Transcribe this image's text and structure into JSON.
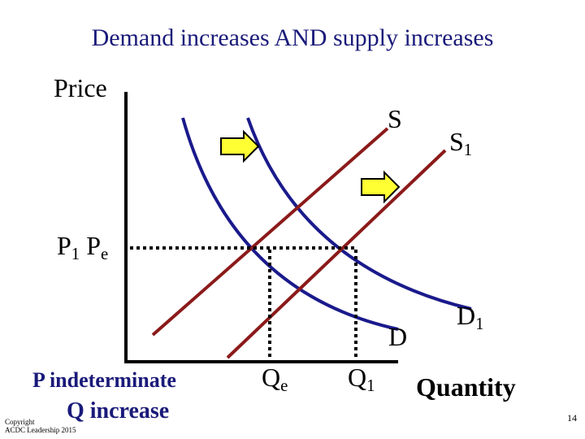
{
  "title": "Demand increases AND supply increases",
  "axes": {
    "y_label": "Price",
    "x_label": "Quantity"
  },
  "curves": {
    "supply_label": "S",
    "supply_shift": {
      "letter": "S",
      "sub": "1"
    },
    "demand_label": "D",
    "demand_shift": {
      "letter": "D",
      "sub": "1"
    }
  },
  "price_labels": {
    "p1": {
      "letter": "P",
      "sub": "1"
    },
    "pe": {
      "letter": "P",
      "sub": "e"
    }
  },
  "quantity_labels": {
    "qe": {
      "letter": "Q",
      "sub": "e"
    },
    "q1": {
      "letter": "Q",
      "sub": "1"
    }
  },
  "conclusion": {
    "price": "P indeterminate",
    "quantity": "Q increase"
  },
  "footer": {
    "copyright_line1": "Copyright",
    "copyright_line2": "ACDC Leadership 2015",
    "page_number": "14"
  },
  "colors": {
    "supply": "#8b1a1a",
    "demand": "#1a1a8c",
    "arrow_fill": "#ffff33",
    "title": "#1a1a7a"
  }
}
